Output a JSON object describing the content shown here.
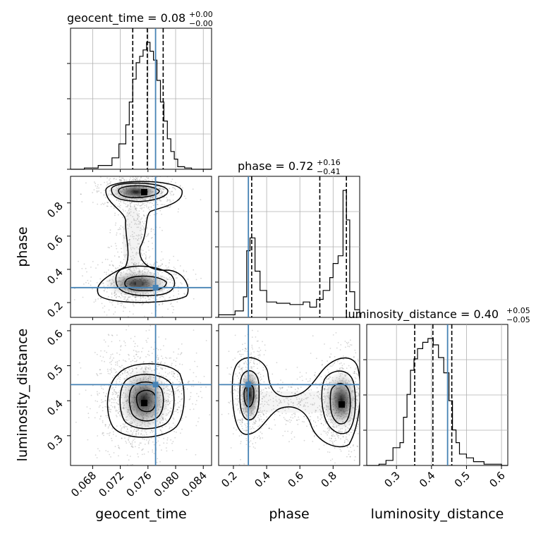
{
  "chart_data": {
    "type": "corner",
    "parameters": [
      "geocent_time",
      "phase",
      "luminosity_distance"
    ],
    "titles": [
      {
        "name": "geocent_time",
        "value": "0.08",
        "plus": "+0.00",
        "minus": "−0.00"
      },
      {
        "name": "phase",
        "value": "0.72",
        "plus": "+0.16",
        "minus": "−0.41"
      },
      {
        "name": "luminosity_distance",
        "value": "0.40",
        "plus": "+0.05",
        "minus": "−0.05"
      }
    ],
    "ranges": {
      "geocent_time": [
        0.0648,
        0.0852
      ],
      "phase": [
        0.111,
        0.96
      ],
      "luminosity_distance": [
        0.215,
        0.618
      ]
    },
    "ticks": {
      "geocent_time": [
        "0.068",
        "0.072",
        "0.076",
        "0.080",
        "0.084"
      ],
      "phase": [
        "0.2",
        "0.4",
        "0.6",
        "0.8"
      ],
      "luminosity_distance": [
        "0.3",
        "0.4",
        "0.5",
        "0.6"
      ]
    },
    "truths": {
      "geocent_time": 0.0771,
      "phase": 0.29,
      "luminosity_distance": 0.446
    },
    "quantiles": {
      "geocent_time": [
        0.0738,
        0.0759,
        0.0782
      ],
      "phase": [
        0.31,
        0.72,
        0.88
      ],
      "luminosity_distance": [
        0.352,
        0.404,
        0.458
      ]
    },
    "histograms": {
      "geocent_time": {
        "edges": [
          0.0648,
          0.0668,
          0.0688,
          0.0708,
          0.0718,
          0.0728,
          0.0733,
          0.0738,
          0.0743,
          0.0748,
          0.0753,
          0.0758,
          0.0763,
          0.0768,
          0.0773,
          0.0778,
          0.0783,
          0.0788,
          0.0793,
          0.0798,
          0.0803,
          0.0813,
          0.0823,
          0.0852
        ],
        "counts": [
          0.0,
          0.01,
          0.03,
          0.09,
          0.2,
          0.35,
          0.53,
          0.71,
          0.84,
          0.89,
          0.94,
          1.0,
          0.93,
          0.86,
          0.7,
          0.53,
          0.38,
          0.24,
          0.14,
          0.08,
          0.02,
          0.01,
          0.0
        ]
      },
      "phase": {
        "edges": [
          0.111,
          0.16,
          0.21,
          0.26,
          0.28,
          0.3,
          0.33,
          0.36,
          0.4,
          0.46,
          0.54,
          0.62,
          0.66,
          0.7,
          0.74,
          0.78,
          0.8,
          0.83,
          0.86,
          0.88,
          0.9,
          0.93,
          0.96
        ],
        "counts": [
          0.02,
          0.02,
          0.05,
          0.16,
          0.52,
          0.62,
          0.36,
          0.21,
          0.12,
          0.11,
          0.1,
          0.12,
          0.08,
          0.14,
          0.21,
          0.31,
          0.42,
          0.48,
          0.99,
          0.76,
          0.2,
          0.06
        ]
      },
      "luminosity_distance": {
        "edges": [
          0.215,
          0.25,
          0.27,
          0.29,
          0.31,
          0.32,
          0.33,
          0.34,
          0.35,
          0.36,
          0.375,
          0.39,
          0.405,
          0.42,
          0.435,
          0.45,
          0.46,
          0.47,
          0.48,
          0.5,
          0.52,
          0.55,
          0.58,
          0.6,
          0.618
        ],
        "counts": [
          0.0,
          0.01,
          0.04,
          0.14,
          0.18,
          0.38,
          0.56,
          0.75,
          0.84,
          0.92,
          0.97,
          1.0,
          0.95,
          0.85,
          0.73,
          0.51,
          0.28,
          0.18,
          0.09,
          0.06,
          0.03,
          0.01,
          0.01,
          0.0
        ]
      }
    },
    "density_modes": {
      "geocent_time_vs_phase": [
        {
          "x": 0.0758,
          "y": 0.86
        },
        {
          "x": 0.0758,
          "y": 0.29
        }
      ],
      "geocent_time_vs_luminosity_distance": [
        {
          "x": 0.0758,
          "y": 0.39
        }
      ],
      "phase_vs_luminosity_distance": [
        {
          "x": 0.87,
          "y": 0.38
        },
        {
          "x": 0.29,
          "y": 0.43
        }
      ]
    }
  }
}
